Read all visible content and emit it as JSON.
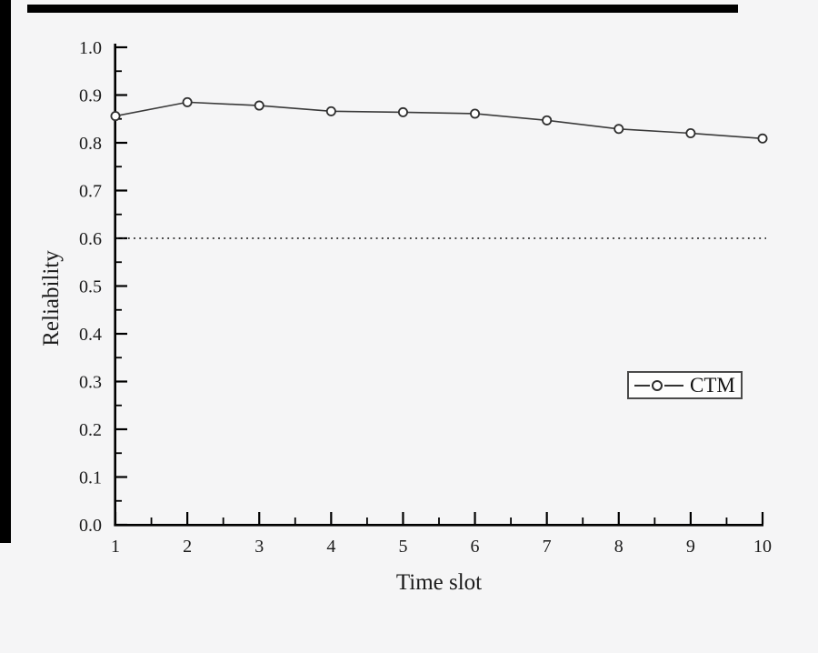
{
  "chart_data": {
    "type": "line",
    "title": "",
    "xlabel": "Time slot",
    "ylabel": "Reliability",
    "x": [
      1,
      2,
      3,
      4,
      5,
      6,
      7,
      8,
      9,
      10
    ],
    "series": [
      {
        "name": "CTM",
        "values": [
          0.856,
          0.885,
          0.878,
          0.866,
          0.864,
          0.861,
          0.847,
          0.829,
          0.82,
          0.809
        ]
      }
    ],
    "xlim": [
      1,
      10
    ],
    "ylim": [
      0.0,
      1.0
    ],
    "x_ticks": [
      {
        "v": 1,
        "label": "1"
      },
      {
        "v": 2,
        "label": "2"
      },
      {
        "v": 3,
        "label": "3"
      },
      {
        "v": 4,
        "label": "4"
      },
      {
        "v": 5,
        "label": "5"
      },
      {
        "v": 6,
        "label": "6"
      },
      {
        "v": 7,
        "label": "7"
      },
      {
        "v": 8,
        "label": "8"
      },
      {
        "v": 9,
        "label": "9"
      },
      {
        "v": 10,
        "label": "10"
      }
    ],
    "y_ticks": [
      {
        "v": 0.0,
        "label": "0.0"
      },
      {
        "v": 0.1,
        "label": "0.1"
      },
      {
        "v": 0.2,
        "label": "0.2"
      },
      {
        "v": 0.3,
        "label": "0.3"
      },
      {
        "v": 0.4,
        "label": "0.4"
      },
      {
        "v": 0.5,
        "label": "0.5"
      },
      {
        "v": 0.6,
        "label": "0.6"
      },
      {
        "v": 0.7,
        "label": "0.7"
      },
      {
        "v": 0.8,
        "label": "0.8"
      },
      {
        "v": 0.9,
        "label": "0.9"
      },
      {
        "v": 1.0,
        "label": "1.0"
      }
    ],
    "x_minor_step": 0.5,
    "y_minor_step": 0.05,
    "tick_direction": "in",
    "grid": false,
    "reference_line": {
      "y": 0.6,
      "style": "dotted"
    },
    "legend": {
      "position": "right-middle",
      "entries": [
        "CTM"
      ]
    },
    "colors": {
      "background": "#f5f5f6",
      "axis": "#000000",
      "text": "#1b1b1b",
      "line": "#3a3a3a",
      "marker_fill": "#ffffff",
      "marker_edge": "#2e2e2e",
      "reference": "#262626",
      "legend_border": "#4a4a4a"
    }
  }
}
